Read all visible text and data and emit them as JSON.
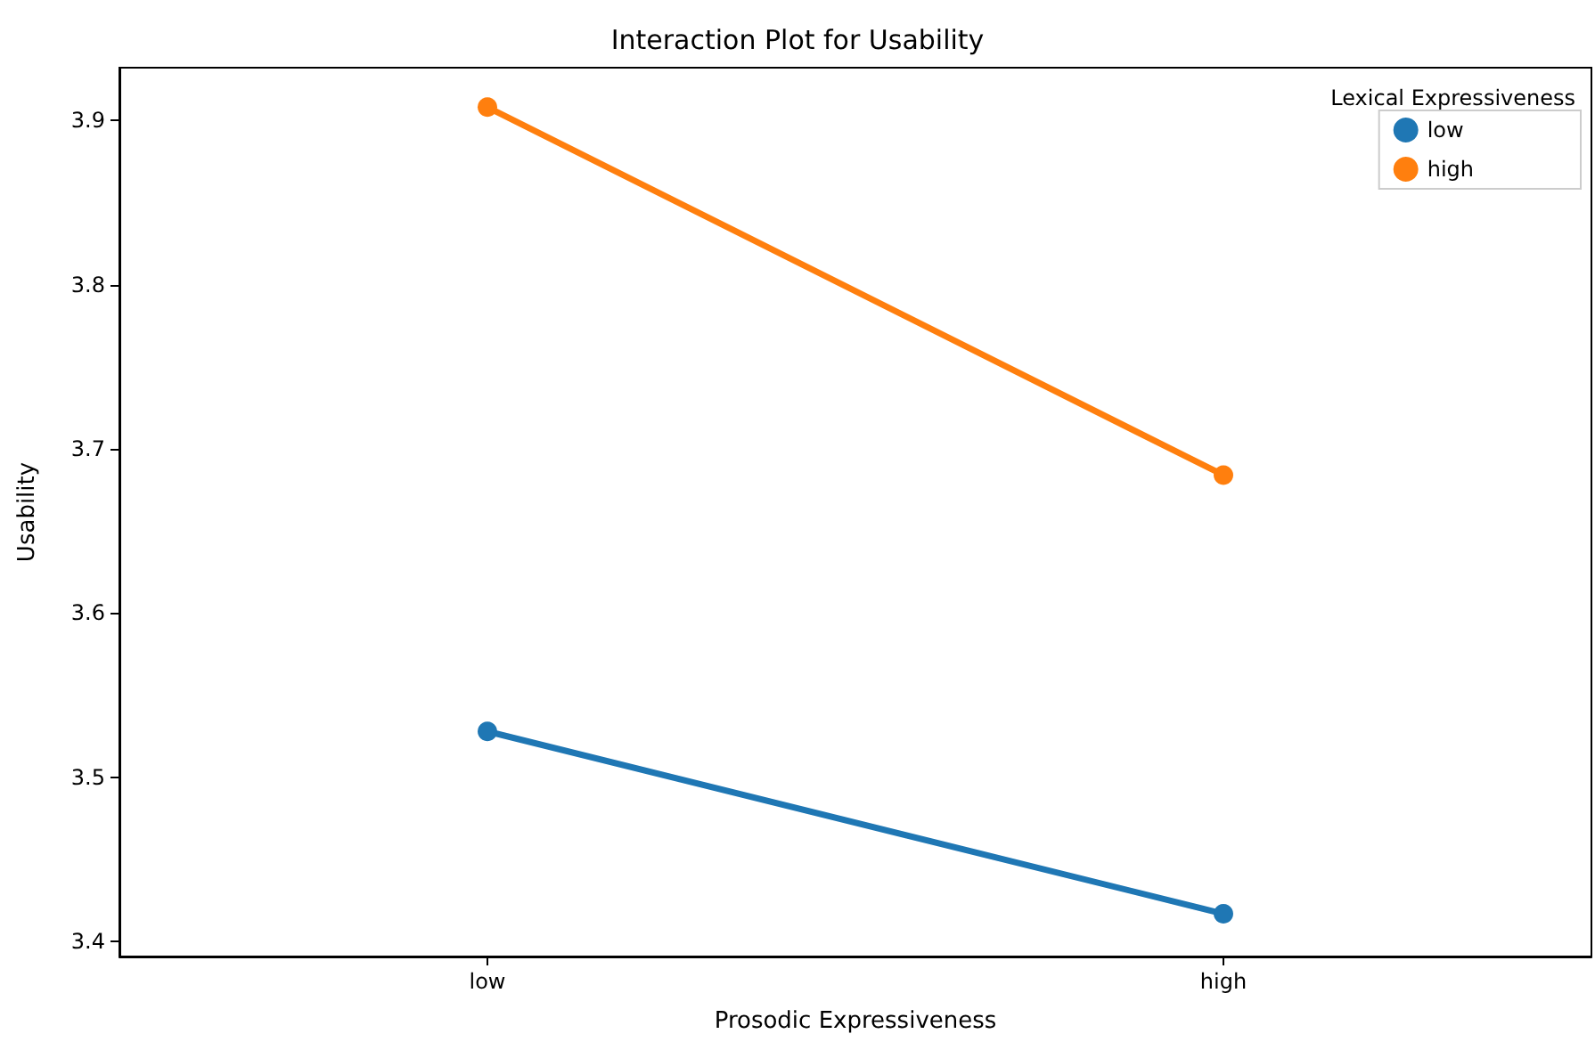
{
  "chart_data": {
    "type": "line",
    "title": "Interaction Plot for Usability",
    "xlabel": "Prosodic Expressiveness",
    "ylabel": "Usability",
    "legend_title": "Lexical Expressiveness",
    "categories": [
      "low",
      "high"
    ],
    "series": [
      {
        "name": "low",
        "color": "#1f77b4",
        "values": [
          3.528,
          3.417
        ]
      },
      {
        "name": "high",
        "color": "#ff7f0e",
        "values": [
          3.908,
          3.684
        ]
      }
    ],
    "ylim": [
      3.391,
      3.932
    ],
    "yticks": [
      3.4,
      3.5,
      3.6,
      3.7,
      3.8,
      3.9
    ],
    "grid": false,
    "legend": "top right",
    "marker": "circle",
    "line_style": "solid"
  }
}
